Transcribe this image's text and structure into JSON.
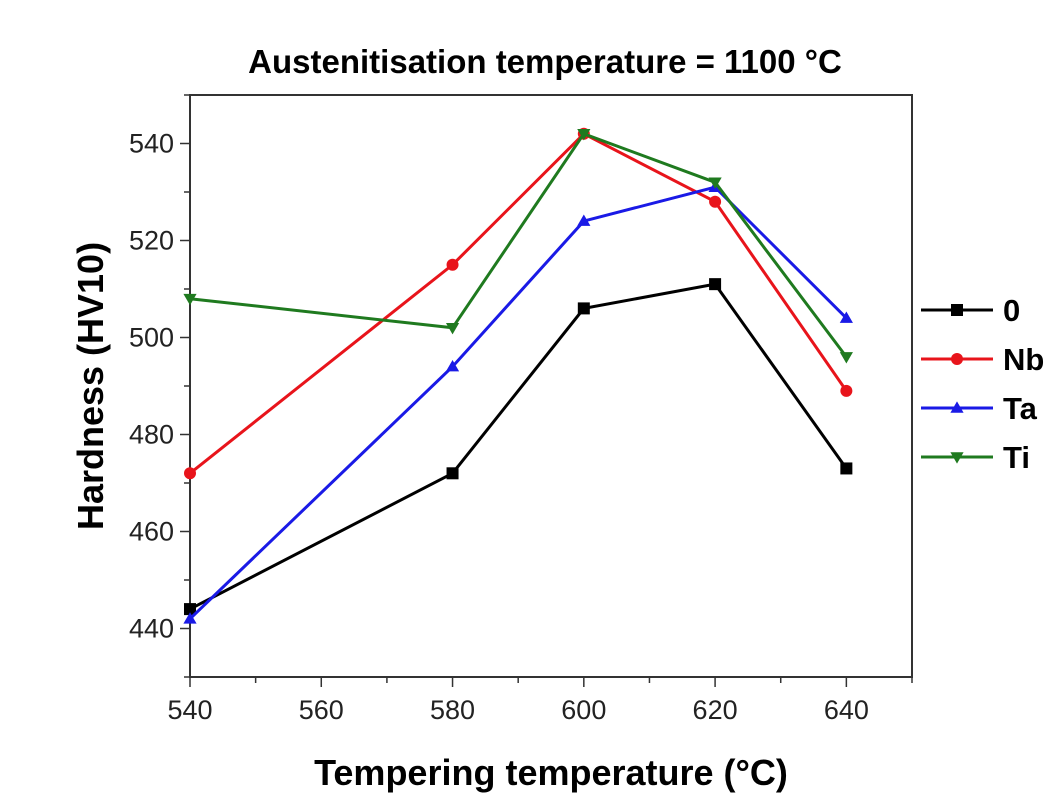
{
  "chart_data": {
    "type": "line",
    "title": "Austenitisation temperature = 1100 °C",
    "xlabel": "Tempering temperature (°C)",
    "ylabel": "Hardness (HV10)",
    "xlim": [
      540,
      650
    ],
    "ylim": [
      430,
      550
    ],
    "xticks": [
      540,
      560,
      580,
      600,
      620,
      640
    ],
    "yticks": [
      440,
      460,
      480,
      500,
      520,
      540
    ],
    "x": [
      540,
      580,
      600,
      620,
      640
    ],
    "grid": false,
    "legend_position": "right",
    "series": [
      {
        "name": "0",
        "color": "#000000",
        "marker": "square",
        "values": [
          444,
          472,
          506,
          511,
          473
        ]
      },
      {
        "name": "Nb",
        "color": "#e8141b",
        "marker": "circle",
        "values": [
          472,
          515,
          542,
          528,
          489
        ]
      },
      {
        "name": "Ta",
        "color": "#1a1ae6",
        "marker": "triangle-up",
        "values": [
          442,
          494,
          524,
          531,
          504
        ]
      },
      {
        "name": "Ti",
        "color": "#1f7a1f",
        "marker": "triangle-down",
        "values": [
          508,
          502,
          542,
          532,
          496
        ]
      }
    ]
  }
}
